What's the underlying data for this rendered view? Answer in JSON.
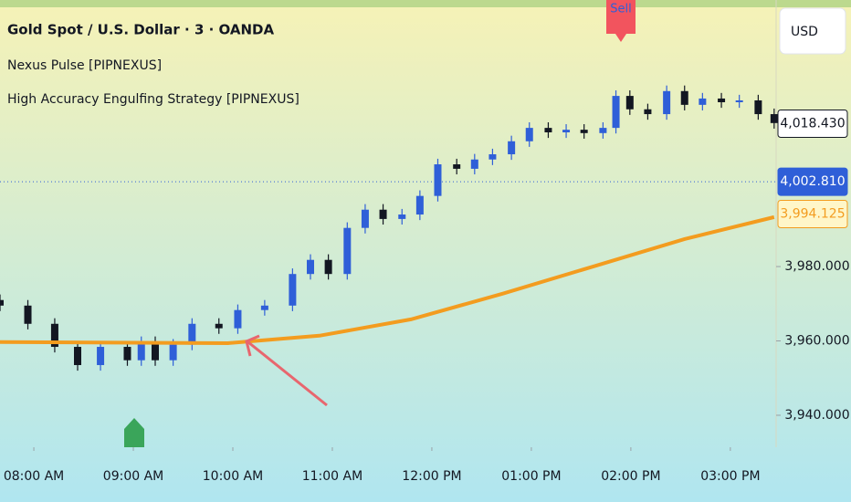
{
  "chart_data": {
    "type": "candlestick",
    "title": "Gold Spot / U.S. Dollar · 3 · OANDA",
    "indicators": [
      "Nexus Pulse [PIPNEXUS]",
      "High Accuracy Engulfing Strategy [PIPNEXUS]"
    ],
    "currency": "USD",
    "signal_label": "Sell",
    "signal_x": 13.9,
    "x": [
      7.66,
      7.94,
      8.21,
      8.44,
      8.67,
      8.94,
      9.08,
      9.22,
      9.4,
      9.59,
      9.86,
      10.05,
      10.32,
      10.6,
      10.78,
      10.96,
      11.15,
      11.33,
      11.51,
      11.7,
      11.88,
      12.06,
      12.25,
      12.43,
      12.61,
      12.8,
      12.98,
      13.17,
      13.35,
      13.53,
      13.72,
      13.85,
      13.99,
      14.17,
      14.36,
      14.54,
      14.72,
      14.91,
      15.09,
      15.28,
      15.44
    ],
    "open": [
      3971.0,
      3969.5,
      3964.6,
      3958.4,
      3953.5,
      3958.4,
      3954.8,
      3959.7,
      3954.8,
      3959.0,
      3964.6,
      3963.4,
      3968.3,
      3969.5,
      3978.0,
      3981.8,
      3978.0,
      3990.4,
      3995.3,
      3992.8,
      3994.0,
      3999.0,
      4007.5,
      4006.3,
      4008.8,
      4010.2,
      4013.7,
      4017.3,
      4016.1,
      4016.8,
      4015.9,
      4017.3,
      4025.9,
      4022.3,
      4021.0,
      4027.2,
      4023.5,
      4025.2,
      4024.2,
      4024.7,
      4021.0
    ],
    "high": [
      3972.5,
      3971.0,
      3966.1,
      3959.9,
      3959.9,
      3959.9,
      3961.2,
      3961.2,
      3960.5,
      3966.1,
      3966.1,
      3969.8,
      3971.0,
      3979.5,
      3983.3,
      3983.3,
      3991.9,
      3996.8,
      3996.8,
      3995.5,
      4000.5,
      4009.0,
      4009.0,
      4010.3,
      4011.7,
      4015.2,
      4018.8,
      4018.8,
      4018.3,
      4018.3,
      4018.8,
      4027.4,
      4027.4,
      4023.8,
      4028.7,
      4028.7,
      4026.7,
      4026.7,
      4026.2,
      4026.2,
      4022.5
    ],
    "low": [
      3968.0,
      3963.1,
      3956.9,
      3952.0,
      3952.0,
      3953.3,
      3953.3,
      3953.3,
      3953.3,
      3957.5,
      3961.9,
      3961.9,
      3966.8,
      3968.0,
      3976.5,
      3976.5,
      3976.5,
      3988.9,
      3991.3,
      3991.3,
      3992.5,
      3997.5,
      4004.8,
      4004.8,
      4007.3,
      4008.7,
      4012.2,
      4014.6,
      4014.6,
      4014.4,
      4014.4,
      4015.8,
      4020.8,
      4019.5,
      4019.5,
      4022.0,
      4022.0,
      4022.7,
      4022.7,
      4019.5,
      4017.1
    ],
    "close": [
      3969.5,
      3964.6,
      3958.4,
      3953.5,
      3958.4,
      3954.8,
      3959.7,
      3954.8,
      3959.0,
      3964.6,
      3963.4,
      3968.3,
      3969.5,
      3978.0,
      3981.8,
      3978.0,
      3990.4,
      3995.3,
      3992.8,
      3994.0,
      3999.0,
      4007.5,
      4006.3,
      4008.8,
      4010.2,
      4013.7,
      4017.3,
      4016.1,
      4016.8,
      4015.9,
      4017.3,
      4025.9,
      4022.3,
      4021.0,
      4027.2,
      4023.5,
      4025.2,
      4024.2,
      4024.7,
      4021.0,
      4018.6
    ],
    "up_color": "#2f5fd8",
    "down_color": "#131722",
    "moving_average": {
      "color": "#f39c1f",
      "x": [
        7.66,
        9.95,
        10.87,
        11.79,
        12.71,
        13.62,
        14.54,
        15.44
      ],
      "values": [
        3959.7,
        3959.4,
        3961.4,
        3965.8,
        3972.7,
        3980.0,
        3987.4,
        3993.3
      ]
    },
    "xlim": [
      7.66,
      15.46
    ],
    "ylim": [
      3931.4,
      4051.7
    ],
    "xticks": [
      {
        "value": 8,
        "label": "08:00 AM"
      },
      {
        "value": 9,
        "label": "09:00 AM"
      },
      {
        "value": 10,
        "label": "10:00 AM"
      },
      {
        "value": 11,
        "label": "11:00 AM"
      },
      {
        "value": 12,
        "label": "12:00 PM"
      },
      {
        "value": 13,
        "label": "01:00 PM"
      },
      {
        "value": 14,
        "label": "02:00 PM"
      },
      {
        "value": 15,
        "label": "03:00 PM"
      }
    ],
    "yticks": [
      {
        "value": 3940,
        "label": "3,940.000"
      },
      {
        "value": 3960,
        "label": "3,960.000"
      },
      {
        "value": 3980,
        "label": "3,980.000"
      }
    ],
    "close_price": {
      "value": 4018.43,
      "label": "4,018.430"
    },
    "last_price": {
      "value": 4002.81,
      "label": "4,002.810"
    },
    "ma_price": {
      "value": 3994.125,
      "label": "3,994.125"
    }
  }
}
